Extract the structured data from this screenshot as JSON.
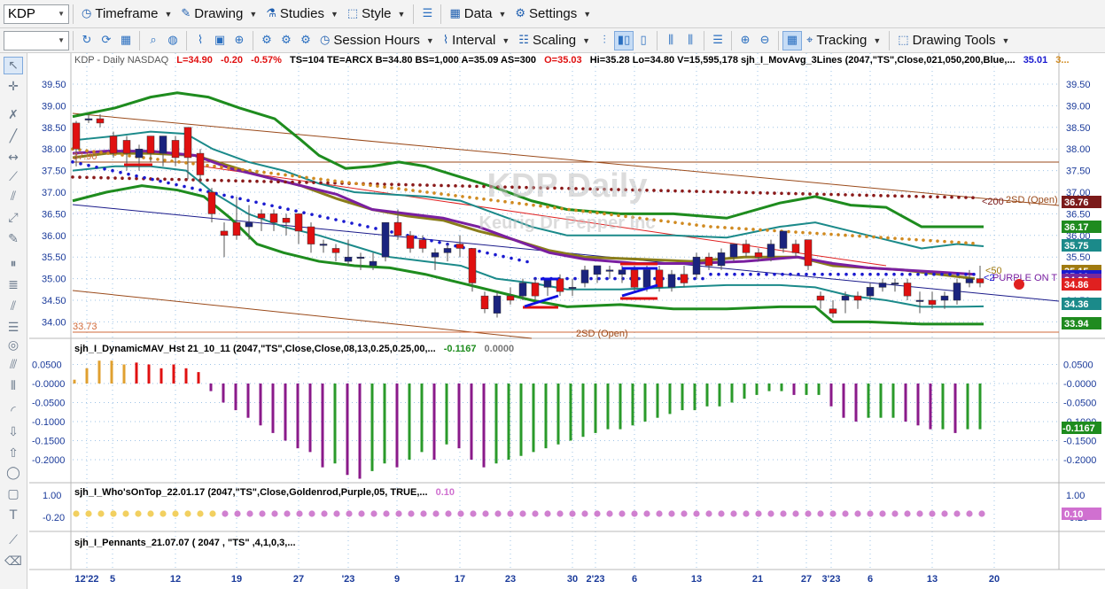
{
  "toolbar1": {
    "symbol": "KDP",
    "timeframe": "Timeframe",
    "drawing": "Drawing",
    "studies": "Studies",
    "style": "Style",
    "data": "Data",
    "settings": "Settings"
  },
  "toolbar2": {
    "session_hours": "Session Hours",
    "interval": "Interval",
    "scaling": "Scaling",
    "tracking": "Tracking",
    "drawing_tools": "Drawing Tools"
  },
  "price_panel": {
    "header_prefix": "KDP - Daily  NASDAQ",
    "last": "L=34.90",
    "change": "-0.20",
    "change_pct": "-0.57%",
    "stats": "TS=104  TE=ARCX  B=34.80  BS=1,000  A=35.09  AS=300",
    "open": "O=35.03",
    "stats2": "Hi=35.28  Lo=34.80  V=15,595,178  sjh_I_MovAvg_3Lines (2047,\"TS\",Close,021,050,200,Blue,...",
    "ma_val1": "35.01",
    "ma_val2": "3...",
    "watermark1": "KDP Daily",
    "watermark2": "Keurig Dr Pepper Inc",
    "label_200": "<200",
    "label_2sd_top": "2SD (Open)",
    "label_2sd_bottom": "2SD (Open)",
    "label_50": "<50",
    "label_purple": "PURPLE ON T",
    "label_2": "<2",
    "label_left_top": "37.90",
    "label_left_bottom": "33.73",
    "y_ticks": [
      "39.50",
      "39.00",
      "38.50",
      "38.00",
      "37.50",
      "37.00",
      "36.50",
      "36.00",
      "35.50",
      "35.00",
      "34.50",
      "34.00"
    ],
    "right_ticks": [
      "39.50",
      "39.00",
      "38.50",
      "38.00",
      "37.50",
      "37.00",
      "36.50",
      "36.00",
      "35.50",
      "35.00",
      "34.50",
      "34.00"
    ],
    "badges": [
      {
        "text": "36.76",
        "color": "#7b1a1a"
      },
      {
        "text": "36.17",
        "color": "#1f8b1f"
      },
      {
        "text": "35.75",
        "color": "#1b8a8a"
      },
      {
        "text": "35.15",
        "color": "#a07a10"
      },
      {
        "text": "35.01",
        "color": "#1a1ad0"
      },
      {
        "text": "34.90",
        "color": "#7a2a9a"
      },
      {
        "text": "34.86",
        "color": "#e02020"
      },
      {
        "text": "34.36",
        "color": "#1b8a8a"
      },
      {
        "text": "33.94",
        "color": "#1f8b1f"
      }
    ]
  },
  "osc_panel": {
    "header": "sjh_I_DynamicMAV_Hst 21_10_11 (2047,\"TS\",Close,Close,08,13,0.25,0.25,00,...",
    "v1": "-0.1167",
    "v2": "0.0000",
    "y_ticks": [
      "0.0500",
      "-0.0000",
      "-0.0500",
      "-0.1000",
      "-0.1500",
      "-0.2000"
    ],
    "right_ticks": [
      "0.0500",
      "-0.0000",
      "-0.0500",
      "-0.1000",
      "-0.1500",
      "-0.2000"
    ],
    "badge": "-0.1167"
  },
  "who_panel": {
    "header": "sjh_I_Who'sOnTop_22.01.17 (2047,\"TS\",Close,Goldenrod,Purple,05, TRUE,...",
    "value": "0.10",
    "y_ticks": [
      "1.00",
      "-0.20"
    ],
    "right_ticks": [
      "1.00",
      "-0.20"
    ],
    "badge": "0.10"
  },
  "pennant_panel": {
    "header": "sjh_I_Pennants_21.07.07 ( 2047 , \"TS\" ,4,1,0,3,..."
  },
  "x_axis": {
    "labels": [
      "12'22",
      "5",
      "12",
      "19",
      "27",
      "'23",
      "9",
      "17",
      "23",
      "30",
      "2'23",
      "6",
      "13",
      "21",
      "27",
      "3'23",
      "6",
      "13",
      "20"
    ]
  },
  "colors": {
    "up": "#1a237e",
    "down": "#e01010",
    "ma_purple": "#7a1fa0",
    "ma_olive": "#8a7d1a",
    "band_green": "#1e8c1e",
    "band_teal": "#1b8a8a"
  }
}
